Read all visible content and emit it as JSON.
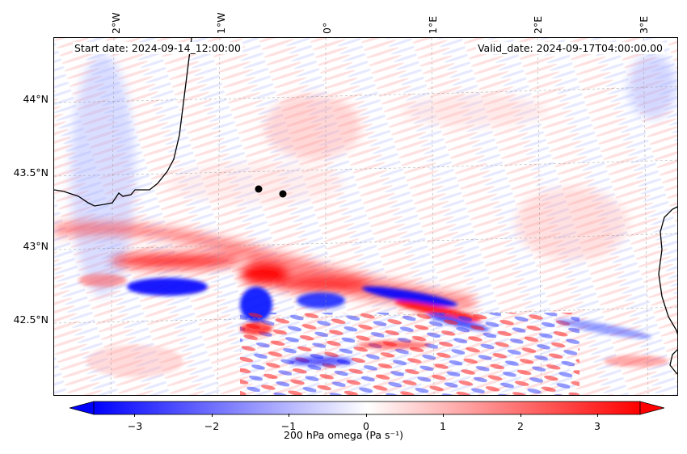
{
  "map": {
    "longitude_labels": [
      "2°W",
      "1°W",
      "0°",
      "1°E",
      "2°E",
      "3°E"
    ],
    "latitude_labels": [
      "44°N",
      "43.5°N",
      "43°N",
      "42.5°N"
    ],
    "start_date": "Start date: 2024-09-14_12:00:00",
    "valid_date": "Valid_date: 2024-09-17T04:00:00.00",
    "markers": [
      "point-1",
      "point-2"
    ],
    "colors": {
      "negative": "#0000ff",
      "positive": "#ff0000",
      "neutral": "#ffffff",
      "coastline": "#000000",
      "marker": "#000000"
    }
  },
  "colorbar": {
    "ticks": [
      "−3",
      "−2",
      "−1",
      "0",
      "1",
      "2",
      "3"
    ],
    "tick_values": [
      -3,
      -2,
      -1,
      0,
      1,
      2,
      3
    ],
    "range": [
      -3.5,
      3.5
    ],
    "label": "200 hPa omega (Pa s⁻¹)",
    "extend": "both"
  }
}
